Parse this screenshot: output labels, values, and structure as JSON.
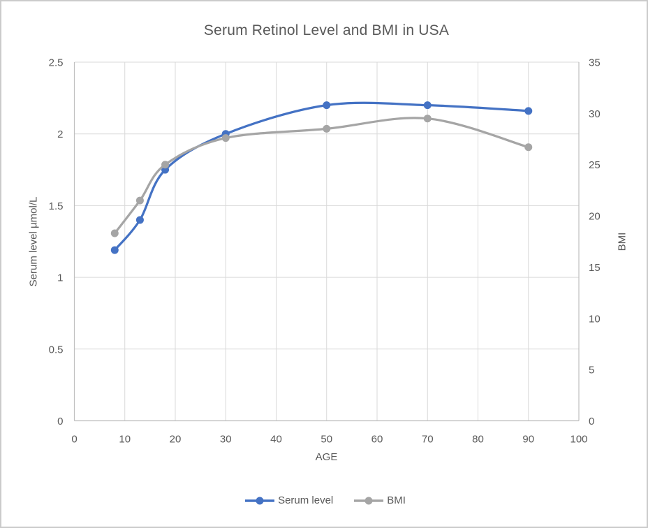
{
  "frame": {
    "border_color": "#cbcbcb",
    "background": "#ffffff"
  },
  "styles": {
    "title_color": "#595959",
    "tick_label_color": "#595959",
    "grid_color": "#d9d9d9",
    "axis_line_color": "#bfbfbf"
  },
  "chart_data": {
    "type": "line",
    "title": "Serum Retinol Level and BMI in USA",
    "xlabel": "AGE",
    "ylabel_left": "Serum level µmol/L",
    "ylabel_right": "BMI",
    "x": [
      8,
      13,
      18,
      30,
      50,
      70,
      90
    ],
    "series": [
      {
        "name": "Serum level",
        "axis": "left",
        "color": "#4472c4",
        "values": [
          1.19,
          1.4,
          1.75,
          2.0,
          2.2,
          2.2,
          2.16
        ]
      },
      {
        "name": "BMI",
        "axis": "right",
        "color": "#a5a5a5",
        "values": [
          18.3,
          21.5,
          25,
          27.6,
          28.5,
          29.5,
          26.7
        ]
      }
    ],
    "x_axis": {
      "min": 0,
      "max": 100,
      "tick_values": [
        0,
        10,
        20,
        30,
        40,
        50,
        60,
        70,
        80,
        90,
        100
      ],
      "tick_labels": [
        "0",
        "10",
        "20",
        "30",
        "40",
        "50",
        "60",
        "70",
        "80",
        "90",
        "100"
      ]
    },
    "y_axis_left": {
      "min": 0,
      "max": 2.5,
      "tick_values": [
        0,
        0.5,
        1,
        1.5,
        2,
        2.5
      ],
      "tick_labels": [
        "0",
        "0.5",
        "1",
        "1.5",
        "2",
        "2.5"
      ]
    },
    "y_axis_right": {
      "min": 0,
      "max": 35,
      "tick_values": [
        0,
        5,
        10,
        15,
        20,
        25,
        30,
        35
      ],
      "tick_labels": [
        "0",
        "5",
        "10",
        "15",
        "20",
        "25",
        "30",
        "35"
      ]
    },
    "grid": true,
    "smooth": true,
    "legend_position": "bottom"
  }
}
